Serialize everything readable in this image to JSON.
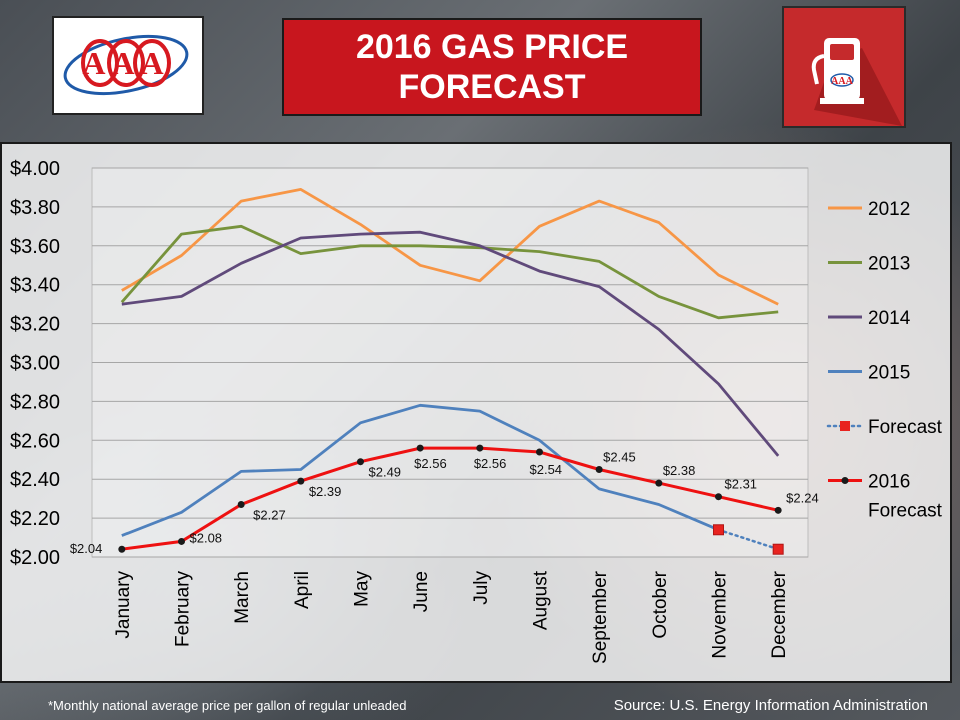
{
  "header": {
    "title_line1": "2016 GAS PRICE",
    "title_line2": "FORECAST",
    "logo_text": "AAA",
    "pump_logo_text": "AAA"
  },
  "colors": {
    "title_bg": "#c8161e",
    "pump_bg": "#c52a2c",
    "s2012": "#f79646",
    "s2013": "#77933c",
    "s2014": "#604a7b",
    "s2015": "#4f81bd",
    "forecast": "#4f81bd",
    "s2016": "#ee1111"
  },
  "chart_data": {
    "type": "line",
    "title": "2016 GAS PRICE FORECAST",
    "xlabel": "",
    "ylabel": "",
    "ylim": [
      2.0,
      4.0
    ],
    "y_ticks": [
      "$2.00",
      "$2.20",
      "$2.40",
      "$2.60",
      "$2.80",
      "$3.00",
      "$3.20",
      "$3.40",
      "$3.60",
      "$3.80",
      "$4.00"
    ],
    "grid": true,
    "legend_position": "right",
    "categories": [
      "January",
      "February",
      "March",
      "April",
      "May",
      "June",
      "July",
      "August",
      "September",
      "October",
      "November",
      "December"
    ],
    "series": [
      {
        "name": "2012",
        "values": [
          3.37,
          3.55,
          3.83,
          3.89,
          3.71,
          3.5,
          3.42,
          3.7,
          3.83,
          3.72,
          3.45,
          3.3
        ]
      },
      {
        "name": "2013",
        "values": [
          3.31,
          3.66,
          3.7,
          3.56,
          3.6,
          3.6,
          3.59,
          3.57,
          3.52,
          3.34,
          3.23,
          3.26
        ]
      },
      {
        "name": "2014",
        "values": [
          3.3,
          3.34,
          3.51,
          3.64,
          3.66,
          3.67,
          3.6,
          3.47,
          3.39,
          3.17,
          2.89,
          2.52
        ]
      },
      {
        "name": "2015",
        "values": [
          2.11,
          2.23,
          2.44,
          2.45,
          2.69,
          2.78,
          2.75,
          2.6,
          2.35,
          2.27,
          2.14,
          null
        ]
      },
      {
        "name": "Forecast",
        "values": [
          null,
          null,
          null,
          null,
          null,
          null,
          null,
          null,
          null,
          null,
          2.14,
          2.04
        ]
      },
      {
        "name": "2016 Forecast",
        "values": [
          2.04,
          2.08,
          2.27,
          2.39,
          2.49,
          2.56,
          2.56,
          2.54,
          2.45,
          2.38,
          2.31,
          2.24
        ],
        "data_labels": [
          "$2.04",
          "$2.08",
          "$2.27",
          "$2.39",
          "$2.49",
          "$2.56",
          "$2.56",
          "$2.54",
          "$2.45",
          "$2.38",
          "$2.31",
          "$2.24"
        ]
      }
    ]
  },
  "footer": {
    "note": "*Monthly national average price per gallon of regular unleaded",
    "source": "Source: U.S. Energy Information  Administration"
  }
}
